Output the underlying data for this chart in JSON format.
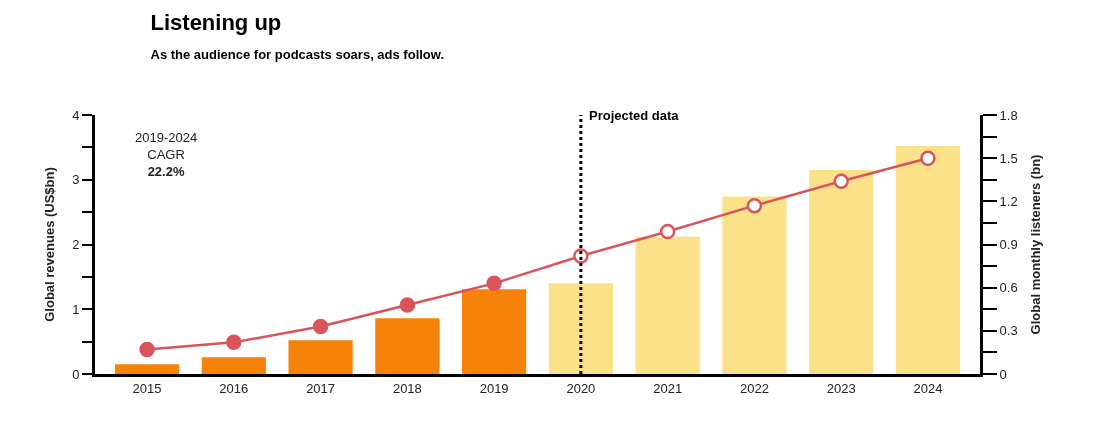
{
  "chart_data": {
    "type": "bar",
    "title": "Listening up",
    "subtitle": "As the audience for podcasts soars, ads follow.",
    "ylabel": "Global revenues (US$bn)",
    "y2label": "Global monthly listeners (bn)",
    "categories": [
      "2015",
      "2016",
      "2017",
      "2018",
      "2019",
      "2020",
      "2021",
      "2022",
      "2023",
      "2024"
    ],
    "series": [
      {
        "colors": [
          "#f7820a",
          "#f7820a",
          "#f7820a",
          "#f7820a",
          "#f7820a",
          "#fbe18a",
          "#fbe18a",
          "#fbe18a",
          "#fbe18a",
          "#fbe18a"
        ],
        "values": [
          0.15,
          0.26,
          0.52,
          0.86,
          1.31,
          1.4,
          2.12,
          2.74,
          3.15,
          3.52
        ]
      },
      {
        "type": "line",
        "axis": "y2",
        "color": "#d9545a",
        "marker": "circle",
        "values": [
          0.17,
          0.22,
          0.33,
          0.48,
          0.63,
          0.82,
          0.99,
          1.17,
          1.34,
          1.5
        ]
      }
    ],
    "ylim": [
      0,
      4
    ],
    "yticks": [
      0,
      {
        "value": 0.5,
        "label": null
      },
      1,
      {
        "value": 1.5,
        "label": null
      },
      2,
      {
        "value": 2.5,
        "label": null
      },
      3,
      {
        "value": 3.5,
        "label": null
      },
      4
    ],
    "y2lim": [
      0,
      1.8
    ],
    "y2ticks": [
      0,
      {
        "value": 0.15,
        "label": null
      },
      0.3,
      {
        "value": 0.45,
        "label": null
      },
      0.6,
      {
        "value": 0.75,
        "label": null
      },
      0.9,
      {
        "value": 1.05,
        "label": null
      },
      1.2,
      {
        "value": 1.35,
        "label": null
      },
      1.5,
      {
        "value": 1.65,
        "label": null
      },
      1.8
    ],
    "ref_lines": [
      {
        "axis": "x",
        "value": "2020",
        "label": "Projected data",
        "color": "#000000",
        "line_style": "dotted"
      }
    ],
    "annotations": [
      "2019-2024\nCAGR\n22.2%"
    ]
  }
}
